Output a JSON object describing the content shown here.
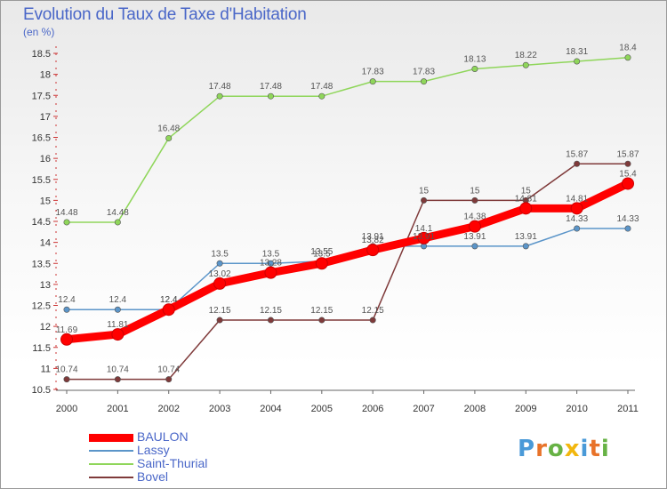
{
  "page": {
    "title": "Evolution du Taux de Taxe d'Habitation",
    "unit": "(en %)",
    "logo": [
      "P",
      "r",
      "o",
      "x",
      "i",
      "t",
      "i"
    ],
    "logo_colors": [
      "#4a9ad8",
      "#e8732a",
      "#67b245",
      "#f2b70f",
      "#4a9ad8",
      "#e8732a",
      "#67b245"
    ]
  },
  "chart_data": {
    "type": "line",
    "title": "Evolution du Taux de Taxe d'Habitation",
    "ylabel": "(en %)",
    "x": [
      "2000",
      "2001",
      "2002",
      "2003",
      "2004",
      "2005",
      "2006",
      "2007",
      "2008",
      "2009",
      "2010",
      "2011"
    ],
    "ylim": [
      10.5,
      18.5
    ],
    "yticks": [
      "10.5",
      "11",
      "11.5",
      "12",
      "12.5",
      "13",
      "13.5",
      "14",
      "14.5",
      "15",
      "15.5",
      "16",
      "16.5",
      "17",
      "17.5",
      "18",
      "18.5"
    ],
    "grid": false,
    "legend": "bottom-left",
    "series": [
      {
        "name": "BAULON",
        "color": "#ff0000",
        "values": [
          11.69,
          11.81,
          12.4,
          13.02,
          13.28,
          13.5,
          13.82,
          14.1,
          14.38,
          14.81,
          14.81,
          15.4
        ],
        "labels": [
          "11.69",
          "11.81",
          "12.4",
          "13.02",
          "13.28",
          "13.5",
          "13.82",
          "14.1",
          "14.38",
          "14.81",
          "14.81",
          "15.4"
        ]
      },
      {
        "name": "Lassy",
        "color": "#5b95c9",
        "values": [
          12.4,
          12.4,
          12.4,
          13.5,
          13.5,
          13.55,
          13.91,
          13.91,
          13.91,
          13.91,
          14.33,
          14.33
        ],
        "labels": [
          "12.4",
          "12.4",
          "12.4",
          "13.5",
          "13.5",
          "13.55",
          "13.91",
          "13.91",
          "13.91",
          "13.91",
          "14.33",
          "14.33"
        ]
      },
      {
        "name": "Saint-Thurial",
        "color": "#8fd65a",
        "values": [
          14.48,
          14.48,
          16.48,
          17.48,
          17.48,
          17.48,
          17.83,
          17.83,
          18.13,
          18.22,
          18.31,
          18.4
        ],
        "labels": [
          "14.48",
          "14.48",
          "16.48",
          "17.48",
          "17.48",
          "17.48",
          "17.83",
          "17.83",
          "18.13",
          "18.22",
          "18.31",
          "18.4"
        ]
      },
      {
        "name": "Bovel",
        "color": "#7f3a3a",
        "values": [
          10.74,
          10.74,
          10.74,
          12.15,
          12.15,
          12.15,
          12.15,
          15,
          15,
          15,
          15.87,
          15.87
        ],
        "labels": [
          "10.74",
          "10.74",
          "10.74",
          "12.15",
          "12.15",
          "12.15",
          "12.15",
          "15",
          "15",
          "15",
          "15.87",
          "15.87"
        ]
      }
    ]
  }
}
